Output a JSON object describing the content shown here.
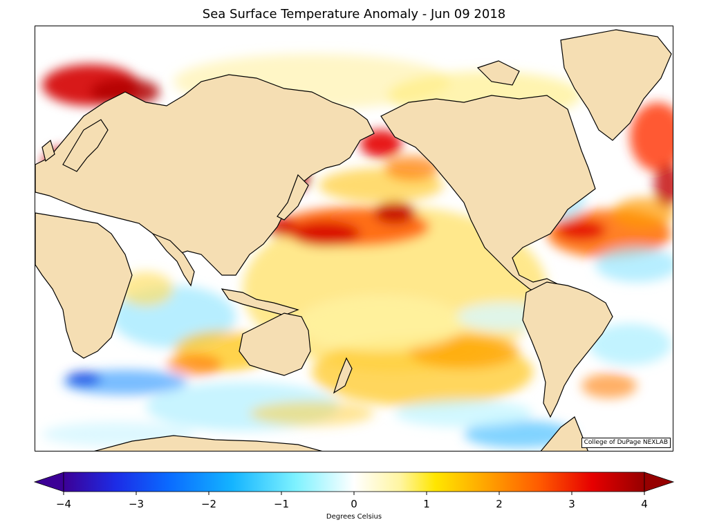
{
  "title": "Sea Surface Temperature Anomaly - Jun 09 2018",
  "credit": "College of DuPage NEXLAB",
  "colorbar": {
    "label": "Degrees Celsius",
    "range": [
      -4,
      4
    ],
    "ticks": [
      "−4",
      "−3",
      "−2",
      "−1",
      "0",
      "1",
      "2",
      "3",
      "4"
    ],
    "colors": [
      "#3c0096",
      "#1c2ce6",
      "#0a6aff",
      "#14b4ff",
      "#7ef2ff",
      "#ffffff",
      "#fff5a0",
      "#ffe600",
      "#ffaa00",
      "#ff5a00",
      "#e60000",
      "#960000"
    ]
  },
  "map": {
    "land_color": "#f5deb3",
    "coast_color": "#000000",
    "border_color": "#999999",
    "ocean_base": "#ffffff"
  }
}
